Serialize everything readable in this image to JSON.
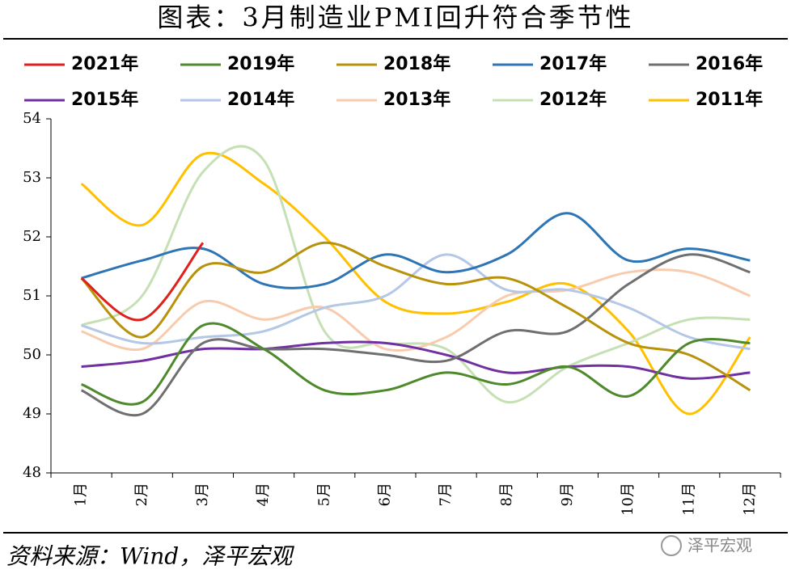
{
  "chart_data": {
    "type": "line",
    "title": "图表：3月制造业PMI回升符合季节性",
    "source": "资料来源：Wind，泽平宏观",
    "watermark": "泽平宏观",
    "categories": [
      "1月",
      "2月",
      "3月",
      "4月",
      "5月",
      "6月",
      "7月",
      "8月",
      "9月",
      "10月",
      "11月",
      "12月"
    ],
    "ylim": [
      48,
      54
    ],
    "yticks": [
      48,
      49,
      50,
      51,
      52,
      53,
      54
    ],
    "series": [
      {
        "name": "2021年",
        "color": "#e0201c",
        "values": [
          51.3,
          50.6,
          51.9,
          null,
          null,
          null,
          null,
          null,
          null,
          null,
          null,
          null
        ]
      },
      {
        "name": "2019年",
        "color": "#4e8a2c",
        "values": [
          49.5,
          49.2,
          50.5,
          50.1,
          49.4,
          49.4,
          49.7,
          49.5,
          49.8,
          49.3,
          50.2,
          50.2
        ]
      },
      {
        "name": "2018年",
        "color": "#b8920a",
        "values": [
          51.3,
          50.3,
          51.5,
          51.4,
          51.9,
          51.5,
          51.2,
          51.3,
          50.8,
          50.2,
          50.0,
          49.4
        ]
      },
      {
        "name": "2017年",
        "color": "#2e75b6",
        "values": [
          51.3,
          51.6,
          51.8,
          51.2,
          51.2,
          51.7,
          51.4,
          51.7,
          52.4,
          51.6,
          51.8,
          51.6
        ]
      },
      {
        "name": "2016年",
        "color": "#6f6f6f",
        "values": [
          49.4,
          49.0,
          50.2,
          50.1,
          50.1,
          50.0,
          49.9,
          50.4,
          50.4,
          51.2,
          51.7,
          51.4
        ]
      },
      {
        "name": "2015年",
        "color": "#7030a0",
        "values": [
          49.8,
          49.9,
          50.1,
          50.1,
          50.2,
          50.2,
          50.0,
          49.7,
          49.8,
          49.8,
          49.6,
          49.7
        ]
      },
      {
        "name": "2014年",
        "color": "#b4c7e7",
        "values": [
          50.5,
          50.2,
          50.3,
          50.4,
          50.8,
          51.0,
          51.7,
          51.1,
          51.1,
          50.8,
          50.3,
          50.1
        ]
      },
      {
        "name": "2013年",
        "color": "#f8cbad",
        "values": [
          50.4,
          50.1,
          50.9,
          50.6,
          50.8,
          50.1,
          50.3,
          51.0,
          51.1,
          51.4,
          51.4,
          51.0
        ]
      },
      {
        "name": "2012年",
        "color": "#c5e0b4",
        "values": [
          50.5,
          51.0,
          53.1,
          53.3,
          50.4,
          50.2,
          50.1,
          49.2,
          49.8,
          50.2,
          50.6,
          50.6
        ]
      },
      {
        "name": "2011年",
        "color": "#ffc000",
        "values": [
          52.9,
          52.2,
          53.4,
          52.9,
          52.0,
          50.9,
          50.7,
          50.9,
          51.2,
          50.4,
          49.0,
          50.3
        ]
      }
    ]
  }
}
